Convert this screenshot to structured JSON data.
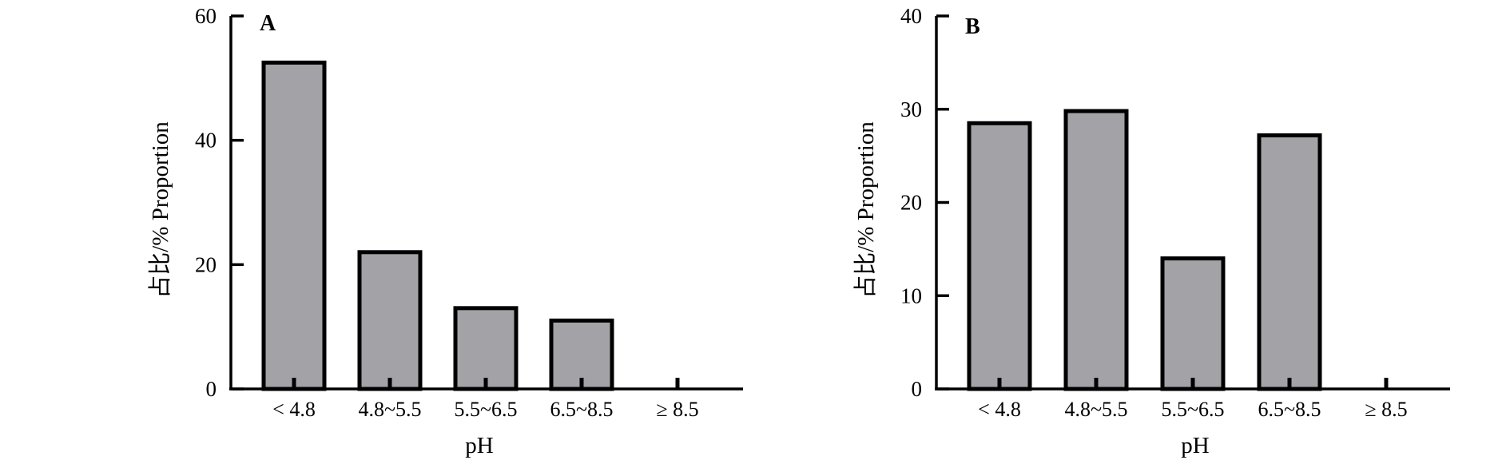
{
  "chart_data": [
    {
      "type": "bar",
      "panel_label": "A",
      "categories": [
        "< 4.8",
        "4.8~5.5",
        "5.5~6.5",
        "6.5~8.5",
        "≥ 8.5"
      ],
      "values": [
        52.5,
        22,
        13,
        11,
        0
      ],
      "xlabel": "pH",
      "ylabel": "占比/% Proportion",
      "ylim": [
        0,
        60
      ],
      "yticks": [
        0,
        20,
        40,
        60
      ],
      "grid": false,
      "colors": {
        "bar": "#a3a2a7",
        "edge": "#000000"
      }
    },
    {
      "type": "bar",
      "panel_label": "B",
      "categories": [
        "< 4.8",
        "4.8~5.5",
        "5.5~6.5",
        "6.5~8.5",
        "≥ 8.5"
      ],
      "values": [
        28.5,
        29.8,
        14,
        27.2,
        0
      ],
      "xlabel": "pH",
      "ylabel": "占比/% Proportion",
      "ylim": [
        0,
        40
      ],
      "yticks": [
        0,
        10,
        20,
        30,
        40
      ],
      "grid": false,
      "colors": {
        "bar": "#a3a2a7",
        "edge": "#000000"
      }
    }
  ]
}
